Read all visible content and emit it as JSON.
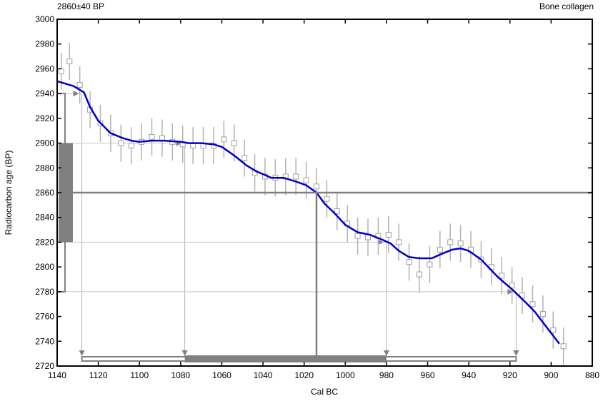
{
  "chart_data": {
    "type": "line",
    "title_left": "2860±40 BP",
    "title_right": "Bone collagen",
    "xlabel": "Cal BC",
    "ylabel": "Radiocarbon age (BP)",
    "xlim": [
      1140,
      880
    ],
    "ylim": [
      2720,
      3000
    ],
    "x_ticks": [
      1140,
      1120,
      1100,
      1080,
      1060,
      1040,
      1020,
      1000,
      980,
      960,
      940,
      920,
      900,
      880
    ],
    "y_ticks": [
      2720,
      2740,
      2760,
      2780,
      2800,
      2820,
      2840,
      2860,
      2880,
      2900,
      2920,
      2940,
      2960,
      2980,
      3000
    ],
    "grid": false,
    "colors": {
      "curve": "#0000cc",
      "data_points": "#b3b3b3",
      "guides": "#808080"
    },
    "calibration_curve": {
      "x": [
        1140,
        1132,
        1127,
        1124,
        1120,
        1114,
        1108,
        1104,
        1100,
        1094,
        1088,
        1080,
        1076,
        1070,
        1064,
        1060,
        1054,
        1048,
        1043,
        1040,
        1036,
        1030,
        1024,
        1019,
        1014,
        1010,
        1005,
        1000,
        994,
        988,
        982,
        978,
        974,
        969,
        964,
        958,
        954,
        948,
        944,
        940,
        934,
        926,
        919,
        914,
        908,
        902,
        896
      ],
      "y": [
        2950,
        2946,
        2941,
        2929,
        2918,
        2908,
        2904,
        2902,
        2901,
        2902,
        2902,
        2901,
        2900,
        2900,
        2899,
        2897,
        2890,
        2882,
        2877,
        2875,
        2872,
        2872,
        2869,
        2866,
        2860,
        2851,
        2843,
        2834,
        2828,
        2826,
        2822,
        2819,
        2813,
        2808,
        2807,
        2807,
        2810,
        2814,
        2815,
        2813,
        2806,
        2792,
        2782,
        2774,
        2764,
        2751,
        2738
      ]
    },
    "data_points": {
      "x": [
        1138,
        1134,
        1129,
        1124,
        1119,
        1114,
        1109,
        1104,
        1099,
        1094,
        1089,
        1084,
        1079,
        1074,
        1069,
        1064,
        1059,
        1054,
        1049,
        1044,
        1039,
        1034,
        1029,
        1024,
        1019,
        1014,
        1009,
        1004,
        999,
        994,
        989,
        984,
        979,
        974,
        969,
        964,
        959,
        954,
        949,
        944,
        939,
        934,
        929,
        924,
        919,
        914,
        909,
        904,
        899,
        894
      ],
      "y": [
        2958,
        2966,
        2947,
        2927,
        2916,
        2908,
        2900,
        2898,
        2901,
        2905,
        2904,
        2901,
        2899,
        2898,
        2898,
        2898,
        2903,
        2900,
        2888,
        2876,
        2873,
        2872,
        2873,
        2873,
        2870,
        2865,
        2855,
        2845,
        2835,
        2825,
        2824,
        2825,
        2826,
        2820,
        2804,
        2794,
        2802,
        2814,
        2820,
        2819,
        2814,
        2806,
        2800,
        2793,
        2785,
        2777,
        2770,
        2762,
        2749,
        2736
      ],
      "error": 15
    },
    "sample": {
      "age": 2860,
      "error": 40,
      "one_sigma": [
        2820,
        2900
      ],
      "two_sigma": [
        2780,
        2940
      ]
    },
    "calibrated_ranges": {
      "one_sigma": [
        1078,
        980
      ],
      "two_sigma": [
        1128,
        917
      ],
      "median": 1014
    }
  }
}
